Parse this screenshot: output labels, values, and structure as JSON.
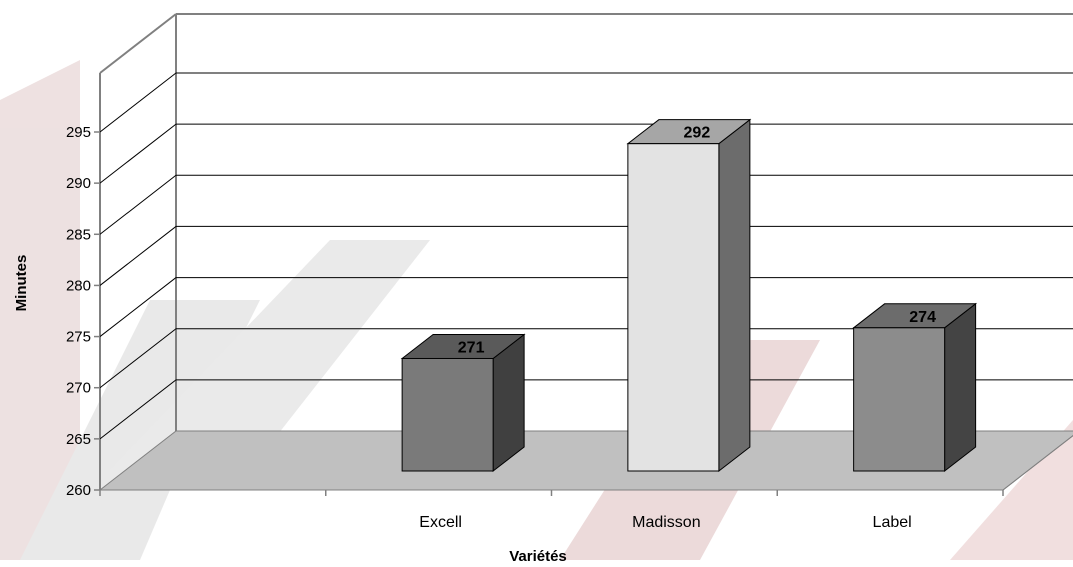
{
  "chart_data": {
    "type": "bar",
    "categories": [
      "Excell",
      "Madisson",
      "Label"
    ],
    "values": [
      271,
      292,
      274
    ],
    "data_labels": [
      "271",
      "292",
      "274"
    ],
    "xlabel": "Variétés",
    "ylabel": "Minutes",
    "ylim": [
      260,
      295
    ],
    "yticks": [
      "260",
      "265",
      "270",
      "275",
      "280",
      "285",
      "290",
      "295"
    ],
    "grid": true,
    "style": "3d-column",
    "colors": {
      "floor": "#c0c0c0",
      "gridline": "#000000",
      "walls": "#808080",
      "bars": [
        {
          "front": "#7a7a7a",
          "top": "#5a5a5a",
          "side": "#404040"
        },
        {
          "front": "#e3e3e3",
          "top": "#a6a6a6",
          "side": "#6c6c6c"
        },
        {
          "front": "#8c8c8c",
          "top": "#6c6c6c",
          "side": "#444444"
        }
      ]
    }
  }
}
